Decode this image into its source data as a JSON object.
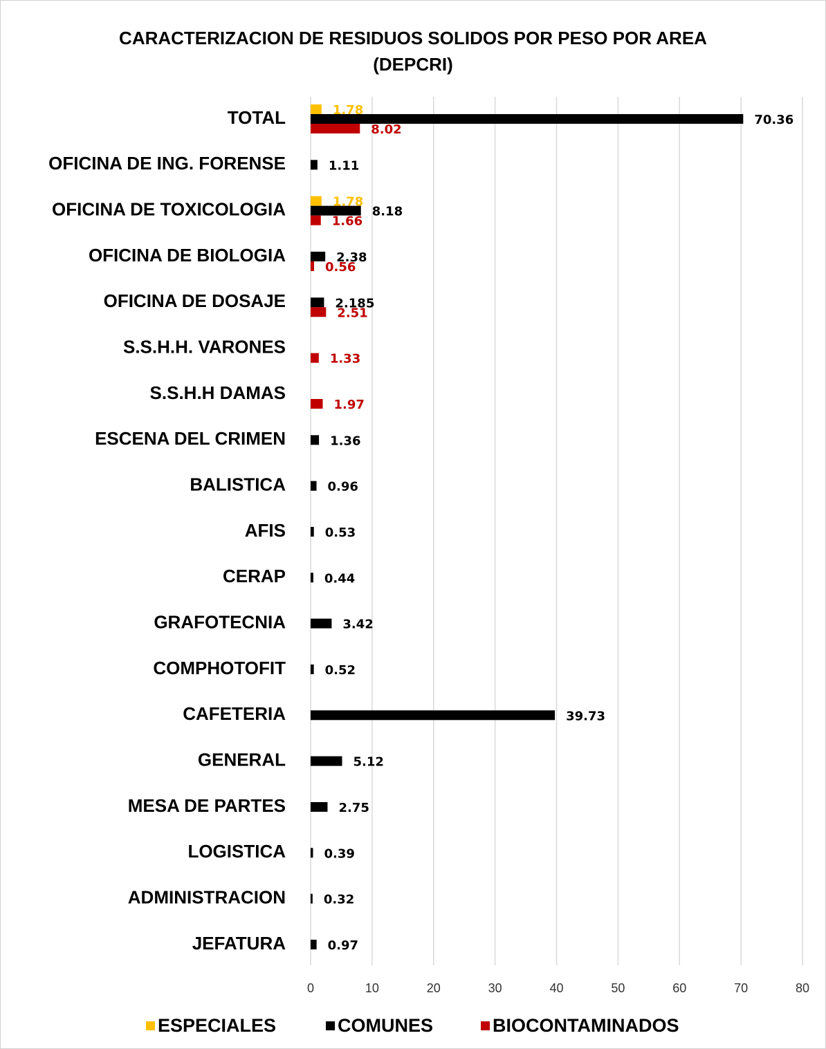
{
  "chart_data": {
    "type": "bar",
    "orientation": "horizontal",
    "title": "CARACTERIZACION  DE RESIDUOS SOLIDOS POR PESO POR AREA (DEPCRI)",
    "categories": [
      "TOTAL",
      "OFICINA DE ING. FORENSE",
      "OFICINA DE TOXICOLOGIA",
      "OFICINA DE BIOLOGIA",
      "OFICINA DE DOSAJE",
      "S.S.H.H. VARONES",
      "S.S.H.H DAMAS",
      "ESCENA DEL CRIMEN",
      "BALISTICA",
      "AFIS",
      "CERAP",
      "GRAFOTECNIA",
      "COMPHOTOFIT",
      "CAFETERIA",
      "GENERAL",
      "MESA DE PARTES",
      "LOGISTICA",
      "ADMINISTRACION",
      "JEFATURA"
    ],
    "series": [
      {
        "name": "ESPECIALES",
        "color": "#FFC000",
        "values": [
          1.78,
          null,
          1.78,
          null,
          null,
          null,
          null,
          null,
          null,
          null,
          null,
          null,
          null,
          null,
          null,
          null,
          null,
          null,
          null
        ]
      },
      {
        "name": "COMUNES",
        "color": "#000000",
        "values": [
          70.36,
          1.11,
          8.18,
          2.38,
          2.185,
          null,
          null,
          1.36,
          0.96,
          0.53,
          0.44,
          3.42,
          0.52,
          39.73,
          5.12,
          2.75,
          0.39,
          0.32,
          0.97
        ]
      },
      {
        "name": "BIOCONTAMINADOS",
        "color": "#C00000",
        "values": [
          8.02,
          null,
          1.66,
          0.56,
          2.51,
          1.33,
          1.97,
          null,
          null,
          null,
          null,
          null,
          null,
          null,
          null,
          null,
          null,
          null,
          null
        ]
      }
    ],
    "xlim": [
      0,
      80
    ],
    "xticks": [
      0,
      10,
      20,
      30,
      40,
      50,
      60,
      70,
      80
    ],
    "grid": true,
    "legend": "bottom"
  }
}
